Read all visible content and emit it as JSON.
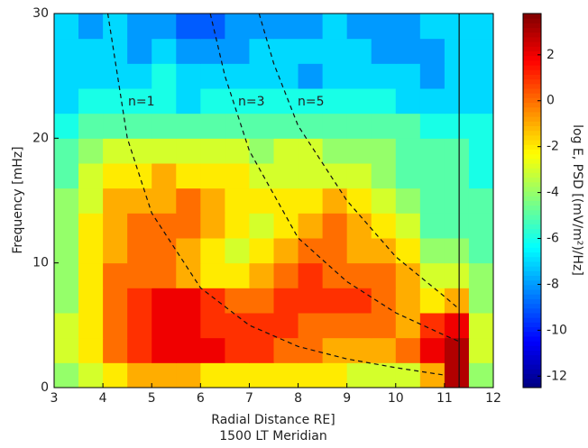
{
  "chart_data": {
    "type": "heatmap",
    "xlabel": "Radial Distance RE]",
    "xlabel2": "1500 LT Meridian",
    "ylabel": "Frequency [mHz]",
    "colorbar_label": "log E, PSD [(mV/m²)/Hz]",
    "colormap": "jet",
    "xlim": [
      3,
      12
    ],
    "xticks": [
      3,
      4,
      5,
      6,
      7,
      8,
      9,
      10,
      11,
      12
    ],
    "ylim": [
      0,
      30
    ],
    "yticks": [
      0,
      10,
      20,
      30
    ],
    "zlim": [
      -12.5,
      3.8
    ],
    "zticks": [
      2,
      0,
      -2,
      -4,
      -6,
      -8,
      -10,
      -12
    ],
    "x_bins": [
      3,
      3.5,
      4,
      4.5,
      5,
      5.5,
      6,
      6.5,
      7,
      7.5,
      8,
      8.5,
      9,
      9.5,
      10,
      10.5,
      11,
      11.5,
      12
    ],
    "y_bins": [
      0,
      2,
      4,
      6,
      8,
      10,
      12,
      14,
      16,
      18,
      20,
      22,
      24,
      26,
      28,
      30
    ],
    "z": [
      [
        -4,
        -3,
        -2,
        -1,
        -1,
        -1,
        -2,
        -2,
        -2,
        -2,
        -2,
        -2,
        -3,
        -3,
        -3,
        -1,
        3,
        -4
      ],
      [
        -3,
        -2,
        0,
        1,
        2,
        2,
        2,
        1,
        1,
        0,
        0,
        -1,
        -1,
        -1,
        0,
        2,
        3,
        -3
      ],
      [
        -3,
        -2,
        0,
        1,
        2,
        2,
        1,
        1,
        1,
        1,
        0,
        0,
        0,
        0,
        -1,
        1,
        2,
        -3
      ],
      [
        -4,
        -2,
        0,
        1,
        2,
        2,
        1,
        0,
        0,
        1,
        1,
        1,
        1,
        0,
        -1,
        -2,
        -1,
        -4
      ],
      [
        -4,
        -2,
        0,
        0,
        0,
        -1,
        -2,
        -2,
        -1,
        0,
        1,
        0,
        0,
        0,
        -1,
        -3,
        -3,
        -4
      ],
      [
        -4,
        -2,
        -1,
        0,
        0,
        -1,
        -2,
        -3,
        -2,
        -1,
        0,
        0,
        -1,
        -1,
        -2,
        -4,
        -4,
        -5
      ],
      [
        -4,
        -2,
        -1,
        0,
        0,
        0,
        -1,
        -2,
        -3,
        -2,
        -1,
        0,
        -1,
        -2,
        -3,
        -5,
        -5,
        -5
      ],
      [
        -4,
        -3,
        -1,
        -1,
        -1,
        0,
        -1,
        -2,
        -2,
        -2,
        -2,
        -1,
        -2,
        -3,
        -4,
        -5,
        -5,
        -5
      ],
      [
        -5,
        -3,
        -2,
        -2,
        -1,
        -2,
        -2,
        -2,
        -3,
        -3,
        -3,
        -3,
        -3,
        -4,
        -5,
        -5,
        -5,
        -6
      ],
      [
        -5,
        -4,
        -3,
        -3,
        -3,
        -3,
        -3,
        -3,
        -4,
        -3,
        -3,
        -4,
        -4,
        -4,
        -5,
        -5,
        -5,
        -6
      ],
      [
        -6,
        -5,
        -5,
        -5,
        -5,
        -5,
        -5,
        -5,
        -5,
        -5,
        -5,
        -5,
        -5,
        -5,
        -5,
        -6,
        -6,
        -6
      ],
      [
        -7,
        -6,
        -6,
        -6,
        -6,
        -7,
        -6,
        -6,
        -6,
        -6,
        -6,
        -6,
        -6,
        -6,
        -7,
        -7,
        -7,
        -7
      ],
      [
        -7,
        -7,
        -7,
        -7,
        -6,
        -7,
        -7,
        -7,
        -7,
        -7,
        -8,
        -7,
        -7,
        -7,
        -7,
        -8,
        -7,
        -7
      ],
      [
        -7,
        -7,
        -7,
        -8,
        -7,
        -8,
        -8,
        -8,
        -7,
        -7,
        -7,
        -7,
        -7,
        -8,
        -8,
        -8,
        -7,
        -7
      ],
      [
        -7,
        -8,
        -7,
        -8,
        -8,
        -9,
        -9,
        -8,
        -8,
        -8,
        -8,
        -7,
        -8,
        -8,
        -8,
        -7,
        -7,
        -7
      ]
    ],
    "curves": [
      {
        "name": "n=1",
        "x": [
          4.1,
          4.5,
          5,
          6,
          7,
          8,
          9,
          10,
          11
        ],
        "values": [
          30,
          20,
          14,
          8,
          5,
          3.3,
          2.3,
          1.6,
          1.0
        ]
      },
      {
        "name": "n=3",
        "x": [
          6.2,
          6.5,
          7,
          8,
          9,
          10,
          11,
          11.3
        ],
        "values": [
          30,
          25,
          19,
          12,
          8.5,
          6,
          4.2,
          3.7
        ]
      },
      {
        "name": "n=5",
        "x": [
          7.2,
          7.5,
          8,
          9,
          10,
          11,
          11.3
        ],
        "values": [
          30,
          26,
          21,
          15,
          10.5,
          7.3,
          6.3
        ]
      }
    ],
    "vline": 11.3
  }
}
